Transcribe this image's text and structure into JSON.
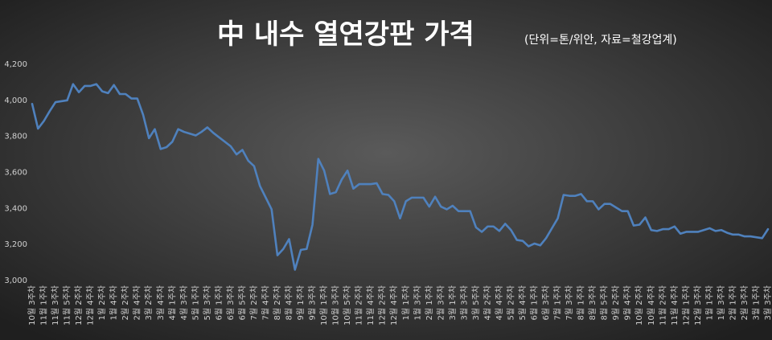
{
  "chart_data": {
    "type": "line",
    "title": "中 내수 열연강판 가격",
    "subtitle": "(단위=톤/위안, 자료=철강업계)",
    "categories": [
      "10월 3주차",
      null,
      "11월 1주차",
      null,
      "11월 3주차",
      null,
      "11월 5주차",
      null,
      "12월 2주차",
      null,
      "12월 4주차",
      null,
      "1월 2주차",
      null,
      "1월 4주차",
      null,
      "2월 2주차",
      null,
      "2월 4주차",
      null,
      "3월 2주차",
      null,
      "3월 4주차",
      null,
      "4월 1주차",
      null,
      "4월 3주차",
      null,
      "5월 1주차",
      null,
      "5월 3주차",
      null,
      "6월 1주차",
      null,
      "6월 3주차",
      null,
      "6월 5주차",
      null,
      "7월 2주차",
      null,
      "7월 4주차",
      null,
      "8월 2주차",
      null,
      "8월 4주차",
      null,
      "9월 1주차",
      null,
      "9월 3주차",
      null,
      "10월 1주차",
      null,
      "10월 3주차",
      null,
      "10월 5주차",
      null,
      "11월 2주차",
      null,
      "11월 4주차",
      null,
      "12월 2주차",
      null,
      "12월 4주차",
      null,
      "1월 1주차",
      null,
      "1월 3주차",
      null,
      "2월 1주차",
      null,
      "2월 3주차",
      null,
      "3월 1주차",
      null,
      "3월 3주차",
      null,
      "3월 5주차",
      null,
      "4월 2주차",
      null,
      "4월 4주차",
      null,
      "5월 2주차",
      null,
      "5월 4주차",
      null,
      "6월 1주차",
      null,
      "6월 3주차",
      null,
      "7월 1주차",
      null,
      "7월 3주차",
      null,
      "8월 1주차",
      null,
      "8월 3주차",
      null,
      "8월 5주차",
      null,
      "9월 2주차",
      null,
      "9월 4주차",
      null,
      "10월 2주차",
      null,
      "10월 4주차",
      null,
      "11월 2주차",
      null,
      "11월 4주차",
      null,
      "12월 1주차",
      null,
      "12월 3주차",
      null,
      "1월 1주차",
      null,
      "1월 3주차",
      null,
      "2월 1주차",
      null,
      "2월 3주차",
      null,
      "3월 1주차",
      null,
      "3월 3주차"
    ],
    "series": [
      {
        "color": "#4f81bd",
        "values": [
          3980,
          3843,
          3885,
          3940,
          3990,
          3995,
          4000,
          4090,
          4045,
          4080,
          4080,
          4090,
          4050,
          4040,
          4085,
          4035,
          4035,
          4010,
          4010,
          3920,
          3790,
          3840,
          3730,
          3740,
          3770,
          3840,
          3825,
          3815,
          3805,
          3825,
          3850,
          3820,
          3795,
          3770,
          3745,
          3700,
          3725,
          3665,
          3635,
          3525,
          3460,
          3395,
          3140,
          3175,
          3230,
          3060,
          3170,
          3175,
          3310,
          3675,
          3610,
          3480,
          3490,
          3560,
          3610,
          3510,
          3535,
          3535,
          3535,
          3540,
          3480,
          3475,
          3440,
          3345,
          3440,
          3460,
          3460,
          3460,
          3410,
          3465,
          3410,
          3395,
          3415,
          3385,
          3385,
          3385,
          3295,
          3270,
          3300,
          3300,
          3275,
          3315,
          3280,
          3225,
          3220,
          3190,
          3205,
          3195,
          3235,
          3290,
          3345,
          3475,
          3470,
          3470,
          3480,
          3440,
          3440,
          3395,
          3425,
          3425,
          3405,
          3385,
          3385,
          3305,
          3310,
          3350,
          3280,
          3275,
          3285,
          3285,
          3300,
          3260,
          3270,
          3270,
          3270,
          3280,
          3290,
          3275,
          3280,
          3265,
          3255,
          3255,
          3245,
          3245,
          3240,
          3235,
          3285
        ]
      }
    ],
    "ylim": [
      3000,
      4200
    ],
    "yticks": [
      {
        "value": 3000,
        "label": "3,000"
      },
      {
        "value": 3200,
        "label": "3,200"
      },
      {
        "value": 3400,
        "label": "3,400"
      },
      {
        "value": 3600,
        "label": "3,600"
      },
      {
        "value": 3800,
        "label": "3,800"
      },
      {
        "value": 4000,
        "label": "4,000"
      },
      {
        "value": 4200,
        "label": "4,200"
      }
    ],
    "grid": false
  }
}
